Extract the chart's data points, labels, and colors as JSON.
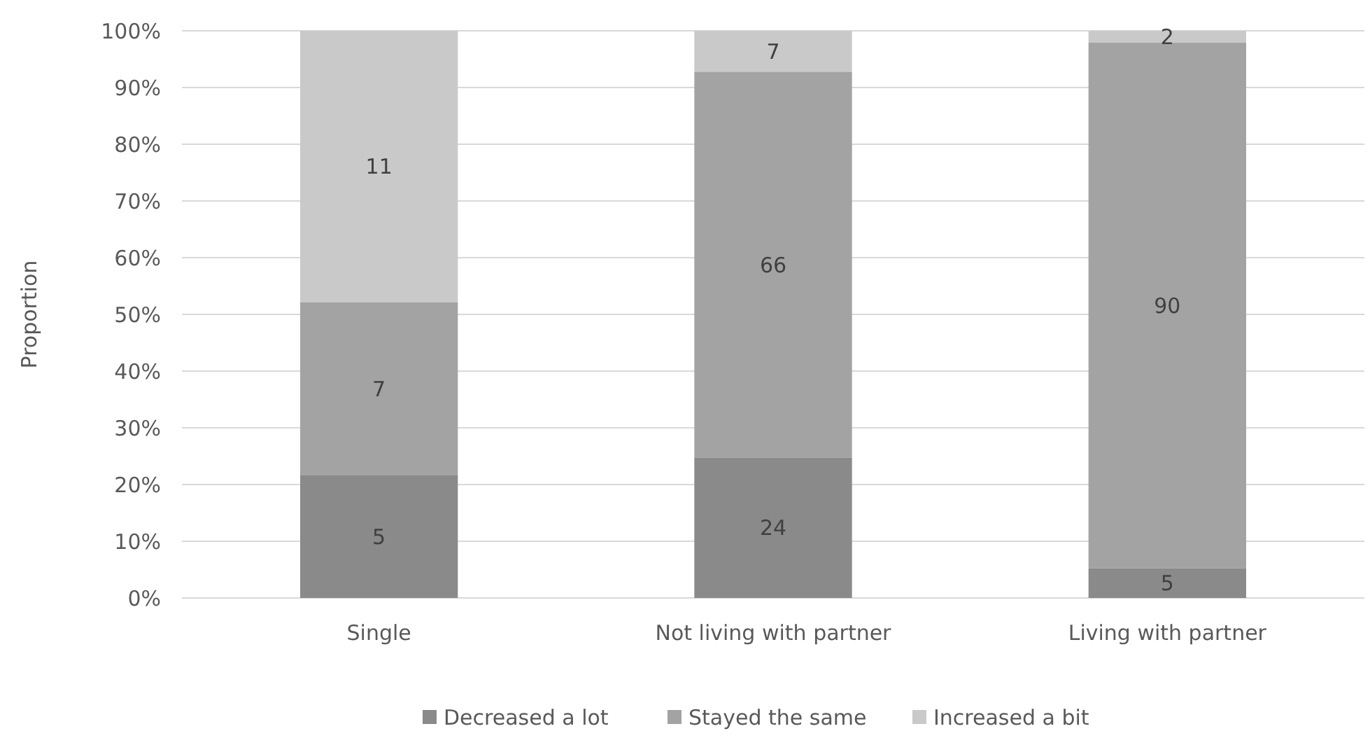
{
  "chart_data": {
    "type": "bar",
    "stacked": true,
    "ylabel": "Proportion",
    "categories": [
      "Single",
      "Not living with partner",
      "Living with partner"
    ],
    "series": [
      {
        "name": "Decreased a lot",
        "color": "#8a8a8a",
        "values": [
          21.7,
          24.7,
          5.2
        ]
      },
      {
        "name": "Stayed the same",
        "color": "#a3a3a3",
        "values": [
          30.4,
          68.1,
          92.7
        ]
      },
      {
        "name": "Increased a bit",
        "color": "#c9c9c9",
        "values": [
          47.9,
          7.2,
          2.1
        ]
      }
    ],
    "annotations": [
      "5",
      "24",
      "5",
      "7",
      "66",
      "90",
      "11",
      "7",
      "2"
    ],
    "ylim": [
      0,
      100
    ],
    "yticks": [
      {
        "value": 0,
        "label": "0%"
      },
      {
        "value": 10,
        "label": "10%"
      },
      {
        "value": 20,
        "label": "20%"
      },
      {
        "value": 30,
        "label": "30%"
      },
      {
        "value": 40,
        "label": "40%"
      },
      {
        "value": 50,
        "label": "50%"
      },
      {
        "value": 60,
        "label": "60%"
      },
      {
        "value": 70,
        "label": "70%"
      },
      {
        "value": 80,
        "label": "80%"
      },
      {
        "value": 90,
        "label": "90%"
      },
      {
        "value": 100,
        "label": "100%"
      }
    ],
    "grid": "y",
    "legend": "bottom"
  }
}
